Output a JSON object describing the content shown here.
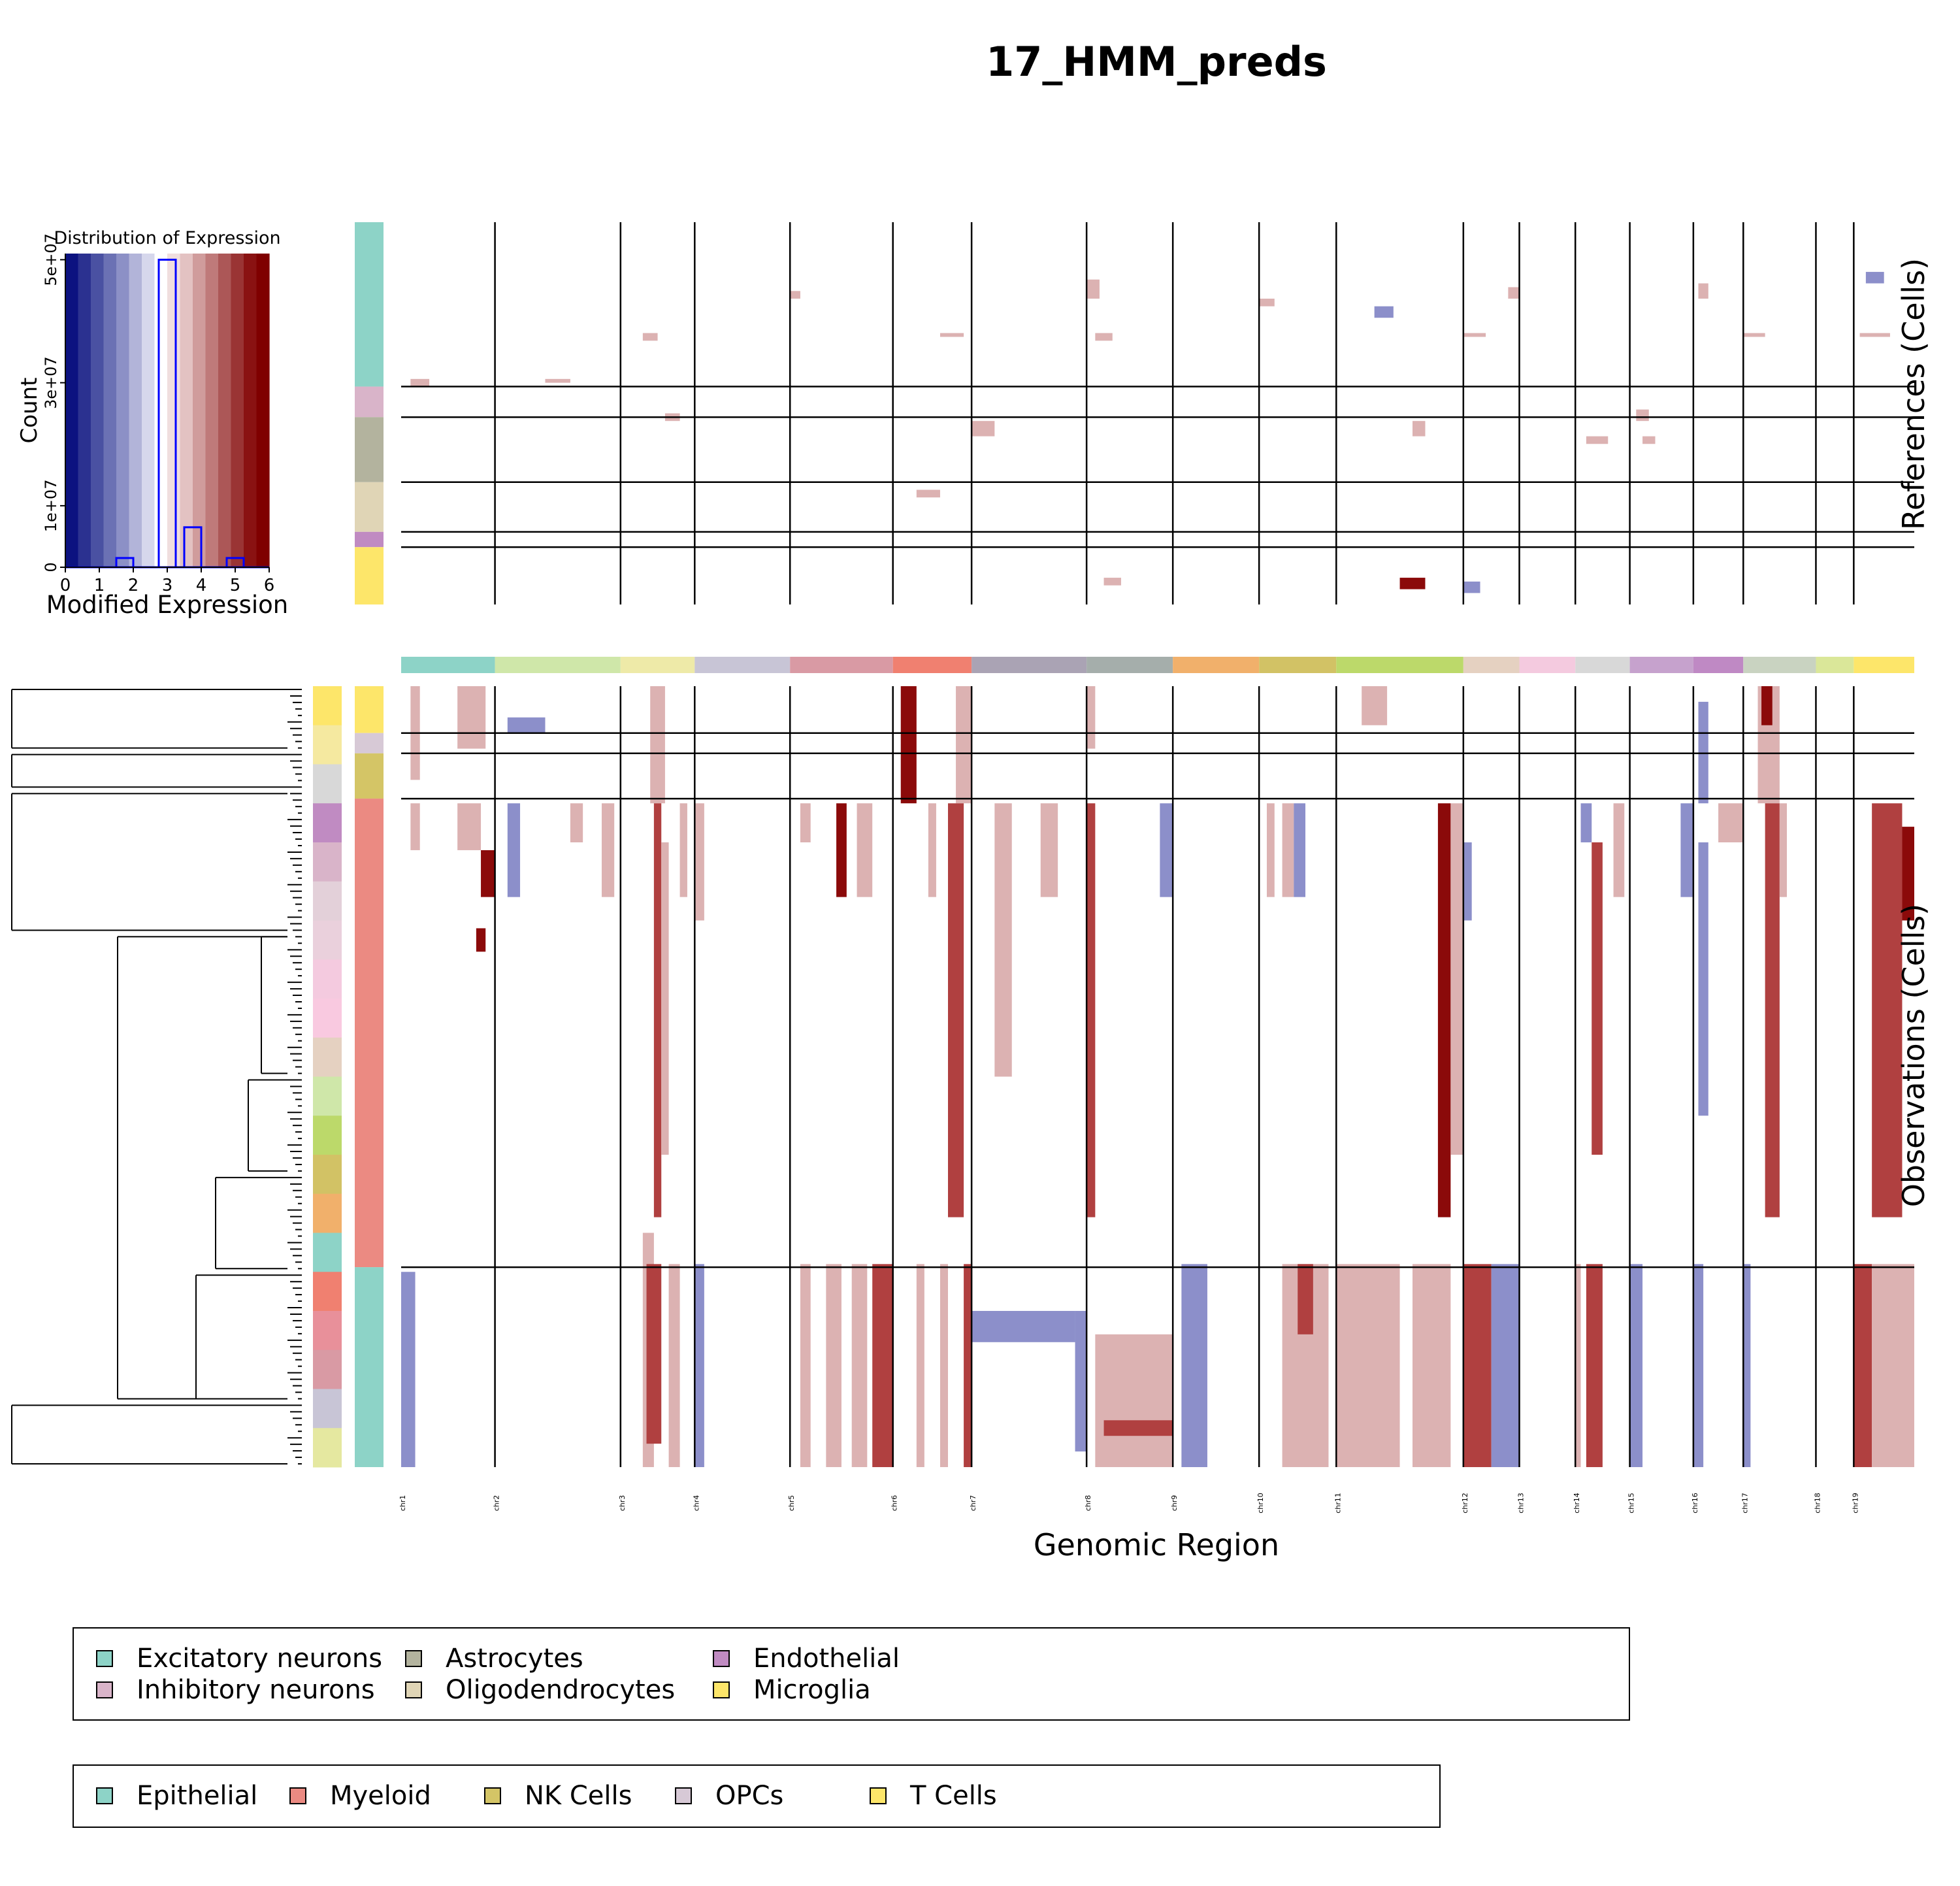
{
  "title": "17_HMM_preds",
  "histogram": {
    "title": "Distribution of Expression",
    "xlabel": "Modified Expression",
    "ylabel": "Count",
    "x_ticks": [
      "0",
      "1",
      "2",
      "3",
      "4",
      "5",
      "6"
    ],
    "y_ticks": [
      "0",
      "1e+07",
      "3e+07",
      "5e+07"
    ],
    "y_tick_values": [
      0,
      10000000,
      30000000,
      50000000
    ],
    "xlim": [
      0,
      6
    ],
    "ylim": [
      0,
      51000000
    ],
    "colormap": [
      "#0c1280",
      "#2b3190",
      "#4a51a2",
      "#6b71b4",
      "#8c90c6",
      "#b2b4d9",
      "#d6d7ec",
      "#ffffff",
      "#f0dede",
      "#e3c2c2",
      "#d09c9c",
      "#bf7a7a",
      "#ac5757",
      "#9a3434",
      "#8a1212",
      "#7f0000"
    ],
    "bar_color": "#0000ff",
    "bins": [
      {
        "x0": 1.5,
        "x1": 2.0,
        "count": 1500000
      },
      {
        "x0": 2.75,
        "x1": 3.25,
        "count": 50000000
      },
      {
        "x0": 3.5,
        "x1": 4.0,
        "count": 6500000
      },
      {
        "x0": 4.75,
        "x1": 5.25,
        "count": 1500000
      }
    ]
  },
  "heatmap": {
    "xlabel": "Genomic Region",
    "ref_label": "References (Cells)",
    "obs_label": "Observations (Cells)",
    "chromosomes": [
      "chr1",
      "chr2",
      "chr3",
      "chr4",
      "chr5",
      "chr6",
      "chr7",
      "chr8",
      "chr9",
      "chr10",
      "chr11",
      "chr12",
      "chr13",
      "chr14",
      "chr15",
      "chr16",
      "chr17",
      "chr18",
      "chr19"
    ],
    "chromosome_boundaries": [
      0,
      0.062,
      0.145,
      0.194,
      0.257,
      0.325,
      0.377,
      0.453,
      0.51,
      0.567,
      0.618,
      0.702,
      0.739,
      0.776,
      0.812,
      0.854,
      0.887,
      0.935,
      0.96,
      1.0
    ],
    "chromosome_colors": [
      "#8dd3c7",
      "#cfe7a9",
      "#eeeaa8",
      "#c8c5d6",
      "#d99aa4",
      "#f08070",
      "#aaa3b4",
      "#a5aeab",
      "#f1b06b",
      "#d2c265",
      "#bcd96a",
      "#e5d1c1",
      "#f4cadf",
      "#d8d8d8",
      "#c6a2cd",
      "#bf89c4",
      "#c9d3c1",
      "#dae799",
      "#fde66a"
    ],
    "reference_groups": [
      {
        "name": "Excitatory neurons",
        "color": "#8dd3c7",
        "frac": 0.43
      },
      {
        "name": "Inhibitory neurons",
        "color": "#d9b4c9",
        "frac": 0.08
      },
      {
        "name": "Astrocytes",
        "color": "#b3b39e",
        "frac": 0.17
      },
      {
        "name": "Oligodendrocytes",
        "color": "#e0d5b6",
        "frac": 0.13
      },
      {
        "name": "Endothelial",
        "color": "#c08bc2",
        "frac": 0.04
      },
      {
        "name": "Microglia",
        "color": "#fde66a",
        "frac": 0.15
      }
    ],
    "observation_groups": [
      {
        "name": "T Cells",
        "color": "#fde66a",
        "frac": 0.06
      },
      {
        "name": "OPCs",
        "color": "#d7c9d6",
        "frac": 0.026
      },
      {
        "name": "NK Cells",
        "color": "#d4c566",
        "frac": 0.058
      },
      {
        "name": "Myeloid",
        "color": "#eb8a82",
        "frac": 0.6
      },
      {
        "name": "Epithelial",
        "color": "#8dd3c7",
        "frac": 0.256
      }
    ],
    "state_colors": {
      "loss": "#8c8fca",
      "gain": "#dcb2b2",
      "high_gain": "#8b0a0a",
      "mid_gain": "#b04040"
    },
    "gains_ref": [
      {
        "chr": "chr1",
        "s": 0.1,
        "e": 0.3,
        "r0": 0.41,
        "r1": 0.43,
        "state": "gain"
      },
      {
        "chr": "chr2",
        "s": 0.4,
        "e": 0.6,
        "r0": 0.41,
        "r1": 0.42,
        "state": "gain"
      },
      {
        "chr": "chr3",
        "s": 0.3,
        "e": 0.5,
        "r0": 0.29,
        "r1": 0.31,
        "state": "gain"
      },
      {
        "chr": "chr3",
        "s": 0.6,
        "e": 0.8,
        "r0": 0.5,
        "r1": 0.52,
        "state": "gain"
      },
      {
        "chr": "chr5",
        "s": 0.0,
        "e": 0.1,
        "r0": 0.18,
        "r1": 0.2,
        "state": "gain"
      },
      {
        "chr": "chr6",
        "s": 0.6,
        "e": 0.9,
        "r0": 0.29,
        "r1": 0.3,
        "state": "gain"
      },
      {
        "chr": "chr7",
        "s": 0.0,
        "e": 0.2,
        "r0": 0.52,
        "r1": 0.56,
        "state": "gain"
      },
      {
        "chr": "chr8",
        "s": 0.0,
        "e": 0.15,
        "r0": 0.15,
        "r1": 0.2,
        "state": "gain"
      },
      {
        "chr": "chr8",
        "s": 0.1,
        "e": 0.3,
        "r0": 0.29,
        "r1": 0.31,
        "state": "gain"
      },
      {
        "chr": "chr10",
        "s": 0.0,
        "e": 0.2,
        "r0": 0.2,
        "r1": 0.22,
        "state": "gain"
      },
      {
        "chr": "chr11",
        "s": 0.3,
        "e": 0.45,
        "r0": 0.22,
        "r1": 0.25,
        "state": "loss"
      },
      {
        "chr": "chr11",
        "s": 0.6,
        "e": 0.7,
        "r0": 0.52,
        "r1": 0.56,
        "state": "gain"
      },
      {
        "chr": "chr12",
        "s": 0.0,
        "e": 0.4,
        "r0": 0.29,
        "r1": 0.3,
        "state": "gain"
      },
      {
        "chr": "chr12",
        "s": 0.8,
        "e": 1.0,
        "r0": 0.17,
        "r1": 0.2,
        "state": "gain"
      },
      {
        "chr": "chr14",
        "s": 0.2,
        "e": 0.6,
        "r0": 0.56,
        "r1": 0.58,
        "state": "gain"
      },
      {
        "chr": "chr15",
        "s": 0.1,
        "e": 0.3,
        "r0": 0.49,
        "r1": 0.52,
        "state": "gain"
      },
      {
        "chr": "chr15",
        "s": 0.2,
        "e": 0.4,
        "r0": 0.56,
        "r1": 0.58,
        "state": "gain"
      },
      {
        "chr": "chr16",
        "s": 0.1,
        "e": 0.3,
        "r0": 0.16,
        "r1": 0.2,
        "state": "gain"
      },
      {
        "chr": "chr17",
        "s": 0.0,
        "e": 0.3,
        "r0": 0.29,
        "r1": 0.3,
        "state": "gain"
      },
      {
        "chr": "chr19",
        "s": 0.2,
        "e": 0.5,
        "r0": 0.13,
        "r1": 0.16,
        "state": "loss"
      },
      {
        "chr": "chr19",
        "s": 0.1,
        "e": 0.6,
        "r0": 0.29,
        "r1": 0.3,
        "state": "gain"
      },
      {
        "chr": "chr6",
        "s": 0.3,
        "e": 0.6,
        "r0": 0.7,
        "r1": 0.72,
        "state": "gain"
      },
      {
        "chr": "chr12",
        "s": 0.0,
        "e": 0.3,
        "r0": 0.94,
        "r1": 0.97,
        "state": "loss"
      },
      {
        "chr": "chr8",
        "s": 0.2,
        "e": 0.4,
        "r0": 0.93,
        "r1": 0.95,
        "state": "gain"
      },
      {
        "chr": "chr11",
        "s": 0.5,
        "e": 0.7,
        "r0": 0.93,
        "r1": 0.96,
        "state": "high_gain"
      }
    ],
    "gains_obs": [
      {
        "chr": "chr1",
        "s": 0.1,
        "e": 0.2,
        "r0": 0.0,
        "r1": 0.12,
        "state": "gain"
      },
      {
        "chr": "chr1",
        "s": 0.6,
        "e": 0.9,
        "r0": 0.0,
        "r1": 0.08,
        "state": "gain"
      },
      {
        "chr": "chr2",
        "s": 0.1,
        "e": 0.4,
        "r0": 0.04,
        "r1": 0.06,
        "state": "loss"
      },
      {
        "chr": "chr3",
        "s": 0.4,
        "e": 0.6,
        "r0": 0.0,
        "r1": 0.15,
        "state": "gain"
      },
      {
        "chr": "chr6",
        "s": 0.1,
        "e": 0.3,
        "r0": 0.0,
        "r1": 0.15,
        "state": "high_gain"
      },
      {
        "chr": "chr6",
        "s": 0.8,
        "e": 1.0,
        "r0": 0.0,
        "r1": 0.15,
        "state": "gain"
      },
      {
        "chr": "chr8",
        "s": 0.0,
        "e": 0.1,
        "r0": 0.0,
        "r1": 0.08,
        "state": "gain"
      },
      {
        "chr": "chr11",
        "s": 0.2,
        "e": 0.4,
        "r0": 0.0,
        "r1": 0.05,
        "state": "gain"
      },
      {
        "chr": "chr17",
        "s": 0.2,
        "e": 0.5,
        "r0": 0.0,
        "r1": 0.15,
        "state": "gain"
      },
      {
        "chr": "chr17",
        "s": 0.25,
        "e": 0.4,
        "r0": 0.0,
        "r1": 0.05,
        "state": "high_gain"
      },
      {
        "chr": "chr16",
        "s": 0.1,
        "e": 0.3,
        "r0": 0.02,
        "r1": 0.15,
        "state": "loss"
      },
      {
        "chr": "chr1",
        "s": 0.1,
        "e": 0.2,
        "r0": 0.15,
        "r1": 0.21,
        "state": "gain"
      },
      {
        "chr": "chr1",
        "s": 0.6,
        "e": 0.85,
        "r0": 0.15,
        "r1": 0.21,
        "state": "gain"
      },
      {
        "chr": "chr1",
        "s": 0.85,
        "e": 1.0,
        "r0": 0.21,
        "r1": 0.27,
        "state": "high_gain"
      },
      {
        "chr": "chr1",
        "s": 0.8,
        "e": 0.9,
        "r0": 0.31,
        "r1": 0.34,
        "state": "high_gain"
      },
      {
        "chr": "chr2",
        "s": 0.1,
        "e": 0.2,
        "r0": 0.15,
        "r1": 0.27,
        "state": "loss"
      },
      {
        "chr": "chr2",
        "s": 0.6,
        "e": 0.7,
        "r0": 0.15,
        "r1": 0.2,
        "state": "gain"
      },
      {
        "chr": "chr2",
        "s": 0.85,
        "e": 0.95,
        "r0": 0.15,
        "r1": 0.27,
        "state": "gain"
      },
      {
        "chr": "chr3",
        "s": 0.45,
        "e": 0.55,
        "r0": 0.15,
        "r1": 0.68,
        "state": "mid_gain"
      },
      {
        "chr": "chr3",
        "s": 0.55,
        "e": 0.65,
        "r0": 0.2,
        "r1": 0.6,
        "state": "gain"
      },
      {
        "chr": "chr3",
        "s": 0.8,
        "e": 0.9,
        "r0": 0.15,
        "r1": 0.27,
        "state": "gain"
      },
      {
        "chr": "chr4",
        "s": 0.0,
        "e": 0.1,
        "r0": 0.15,
        "r1": 0.3,
        "state": "gain"
      },
      {
        "chr": "chr5",
        "s": 0.1,
        "e": 0.2,
        "r0": 0.15,
        "r1": 0.2,
        "state": "gain"
      },
      {
        "chr": "chr5",
        "s": 0.45,
        "e": 0.55,
        "r0": 0.15,
        "r1": 0.27,
        "state": "high_gain"
      },
      {
        "chr": "chr5",
        "s": 0.65,
        "e": 0.8,
        "r0": 0.15,
        "r1": 0.27,
        "state": "gain"
      },
      {
        "chr": "chr6",
        "s": 0.45,
        "e": 0.55,
        "r0": 0.15,
        "r1": 0.27,
        "state": "gain"
      },
      {
        "chr": "chr6",
        "s": 0.7,
        "e": 0.9,
        "r0": 0.15,
        "r1": 0.68,
        "state": "mid_gain"
      },
      {
        "chr": "chr7",
        "s": 0.2,
        "e": 0.35,
        "r0": 0.15,
        "r1": 0.5,
        "state": "gain"
      },
      {
        "chr": "chr7",
        "s": 0.6,
        "e": 0.75,
        "r0": 0.15,
        "r1": 0.27,
        "state": "gain"
      },
      {
        "chr": "chr8",
        "s": 0.0,
        "e": 0.1,
        "r0": 0.15,
        "r1": 0.68,
        "state": "mid_gain"
      },
      {
        "chr": "chr8",
        "s": 0.85,
        "e": 1.0,
        "r0": 0.15,
        "r1": 0.27,
        "state": "loss"
      },
      {
        "chr": "chr10",
        "s": 0.1,
        "e": 0.2,
        "r0": 0.15,
        "r1": 0.27,
        "state": "gain"
      },
      {
        "chr": "chr10",
        "s": 0.3,
        "e": 0.45,
        "r0": 0.15,
        "r1": 0.27,
        "state": "gain"
      },
      {
        "chr": "chr10",
        "s": 0.45,
        "e": 0.6,
        "r0": 0.15,
        "r1": 0.27,
        "state": "loss"
      },
      {
        "chr": "chr11",
        "s": 0.8,
        "e": 0.9,
        "r0": 0.15,
        "r1": 0.68,
        "state": "high_gain"
      },
      {
        "chr": "chr11",
        "s": 0.9,
        "e": 1.0,
        "r0": 0.15,
        "r1": 0.6,
        "state": "gain"
      },
      {
        "chr": "chr12",
        "s": 0.0,
        "e": 0.15,
        "r0": 0.2,
        "r1": 0.3,
        "state": "loss"
      },
      {
        "chr": "chr14",
        "s": 0.1,
        "e": 0.3,
        "r0": 0.15,
        "r1": 0.2,
        "state": "loss"
      },
      {
        "chr": "chr14",
        "s": 0.3,
        "e": 0.5,
        "r0": 0.2,
        "r1": 0.6,
        "state": "mid_gain"
      },
      {
        "chr": "chr14",
        "s": 0.7,
        "e": 0.9,
        "r0": 0.15,
        "r1": 0.27,
        "state": "gain"
      },
      {
        "chr": "chr15",
        "s": 0.8,
        "e": 1.0,
        "r0": 0.15,
        "r1": 0.27,
        "state": "loss"
      },
      {
        "chr": "chr16",
        "s": 0.1,
        "e": 0.3,
        "r0": 0.2,
        "r1": 0.55,
        "state": "loss"
      },
      {
        "chr": "chr16",
        "s": 0.5,
        "e": 1.0,
        "r0": 0.15,
        "r1": 0.2,
        "state": "gain"
      },
      {
        "chr": "chr17",
        "s": 0.3,
        "e": 0.5,
        "r0": 0.15,
        "r1": 0.68,
        "state": "mid_gain"
      },
      {
        "chr": "chr17",
        "s": 0.5,
        "e": 0.6,
        "r0": 0.15,
        "r1": 0.27,
        "state": "gain"
      },
      {
        "chr": "chr19",
        "s": 0.3,
        "e": 0.8,
        "r0": 0.15,
        "r1": 0.68,
        "state": "mid_gain"
      },
      {
        "chr": "chr19",
        "s": 0.8,
        "e": 1.0,
        "r0": 0.18,
        "r1": 0.3,
        "state": "high_gain"
      },
      {
        "chr": "chr1",
        "s": 0.0,
        "e": 0.15,
        "r0": 0.75,
        "r1": 1.0,
        "state": "loss"
      },
      {
        "chr": "chr3",
        "s": 0.3,
        "e": 0.45,
        "r0": 0.7,
        "r1": 1.0,
        "state": "gain"
      },
      {
        "chr": "chr3",
        "s": 0.35,
        "e": 0.55,
        "r0": 0.74,
        "r1": 0.97,
        "state": "mid_gain"
      },
      {
        "chr": "chr3",
        "s": 0.65,
        "e": 0.8,
        "r0": 0.74,
        "r1": 1.0,
        "state": "gain"
      },
      {
        "chr": "chr4",
        "s": 0.0,
        "e": 0.1,
        "r0": 0.74,
        "r1": 1.0,
        "state": "loss"
      },
      {
        "chr": "chr5",
        "s": 0.1,
        "e": 0.2,
        "r0": 0.74,
        "r1": 1.0,
        "state": "gain"
      },
      {
        "chr": "chr5",
        "s": 0.35,
        "e": 0.5,
        "r0": 0.74,
        "r1": 1.0,
        "state": "gain"
      },
      {
        "chr": "chr5",
        "s": 0.6,
        "e": 0.75,
        "r0": 0.74,
        "r1": 1.0,
        "state": "gain"
      },
      {
        "chr": "chr5",
        "s": 0.8,
        "e": 1.0,
        "r0": 0.74,
        "r1": 1.0,
        "state": "mid_gain"
      },
      {
        "chr": "chr6",
        "s": 0.3,
        "e": 0.4,
        "r0": 0.74,
        "r1": 1.0,
        "state": "gain"
      },
      {
        "chr": "chr6",
        "s": 0.6,
        "e": 0.7,
        "r0": 0.74,
        "r1": 1.0,
        "state": "gain"
      },
      {
        "chr": "chr6",
        "s": 0.9,
        "e": 1.0,
        "r0": 0.74,
        "r1": 1.0,
        "state": "mid_gain"
      },
      {
        "chr": "chr7",
        "s": 0.0,
        "e": 0.9,
        "r0": 0.8,
        "r1": 0.84,
        "state": "loss"
      },
      {
        "chr": "chr7",
        "s": 0.9,
        "e": 1.0,
        "r0": 0.8,
        "r1": 0.98,
        "state": "loss"
      },
      {
        "chr": "chr8",
        "s": 0.1,
        "e": 1.0,
        "r0": 0.83,
        "r1": 1.0,
        "state": "gain"
      },
      {
        "chr": "chr8",
        "s": 0.2,
        "e": 1.0,
        "r0": 0.94,
        "r1": 0.96,
        "state": "mid_gain"
      },
      {
        "chr": "chr9",
        "s": 0.1,
        "e": 0.4,
        "r0": 0.74,
        "r1": 1.0,
        "state": "loss"
      },
      {
        "chr": "chr10",
        "s": 0.3,
        "e": 0.9,
        "r0": 0.74,
        "r1": 1.0,
        "state": "gain"
      },
      {
        "chr": "chr10",
        "s": 0.5,
        "e": 0.7,
        "r0": 0.74,
        "r1": 0.83,
        "state": "mid_gain"
      },
      {
        "chr": "chr11",
        "s": 0.0,
        "e": 0.5,
        "r0": 0.74,
        "r1": 1.0,
        "state": "gain"
      },
      {
        "chr": "chr11",
        "s": 0.6,
        "e": 0.9,
        "r0": 0.74,
        "r1": 1.0,
        "state": "gain"
      },
      {
        "chr": "chr12",
        "s": 0.0,
        "e": 0.5,
        "r0": 0.74,
        "r1": 1.0,
        "state": "mid_gain"
      },
      {
        "chr": "chr12",
        "s": 0.5,
        "e": 1.0,
        "r0": 0.74,
        "r1": 1.0,
        "state": "loss"
      },
      {
        "chr": "chr14",
        "s": 0.2,
        "e": 0.5,
        "r0": 0.74,
        "r1": 1.0,
        "state": "mid_gain"
      },
      {
        "chr": "chr14",
        "s": 0.0,
        "e": 0.1,
        "r0": 0.74,
        "r1": 1.0,
        "state": "gain"
      },
      {
        "chr": "chr15",
        "s": 0.0,
        "e": 0.2,
        "r0": 0.74,
        "r1": 1.0,
        "state": "loss"
      },
      {
        "chr": "chr16",
        "s": 0.0,
        "e": 0.2,
        "r0": 0.74,
        "r1": 1.0,
        "state": "loss"
      },
      {
        "chr": "chr17",
        "s": 0.0,
        "e": 0.1,
        "r0": 0.74,
        "r1": 1.0,
        "state": "loss"
      },
      {
        "chr": "chr19",
        "s": 0.0,
        "e": 0.3,
        "r0": 0.74,
        "r1": 1.0,
        "state": "mid_gain"
      },
      {
        "chr": "chr19",
        "s": 0.3,
        "e": 1.0,
        "r0": 0.74,
        "r1": 1.0,
        "state": "gain"
      }
    ]
  },
  "legend_references": {
    "items": [
      {
        "name": "Excitatory neurons",
        "color": "#8dd3c7"
      },
      {
        "name": "Inhibitory neurons",
        "color": "#d9b4c9"
      },
      {
        "name": "Astrocytes",
        "color": "#b3b39e"
      },
      {
        "name": "Oligodendrocytes",
        "color": "#e0d5b6"
      },
      {
        "name": "Endothelial",
        "color": "#c08bc2"
      },
      {
        "name": "Microglia",
        "color": "#fde66a"
      }
    ]
  },
  "legend_observations": {
    "items": [
      {
        "name": "Epithelial",
        "color": "#8dd3c7"
      },
      {
        "name": "Myeloid",
        "color": "#eb8a82"
      },
      {
        "name": "NK Cells",
        "color": "#d4c566"
      },
      {
        "name": "OPCs",
        "color": "#d7c9d6"
      },
      {
        "name": "T Cells",
        "color": "#fde66a"
      }
    ]
  }
}
